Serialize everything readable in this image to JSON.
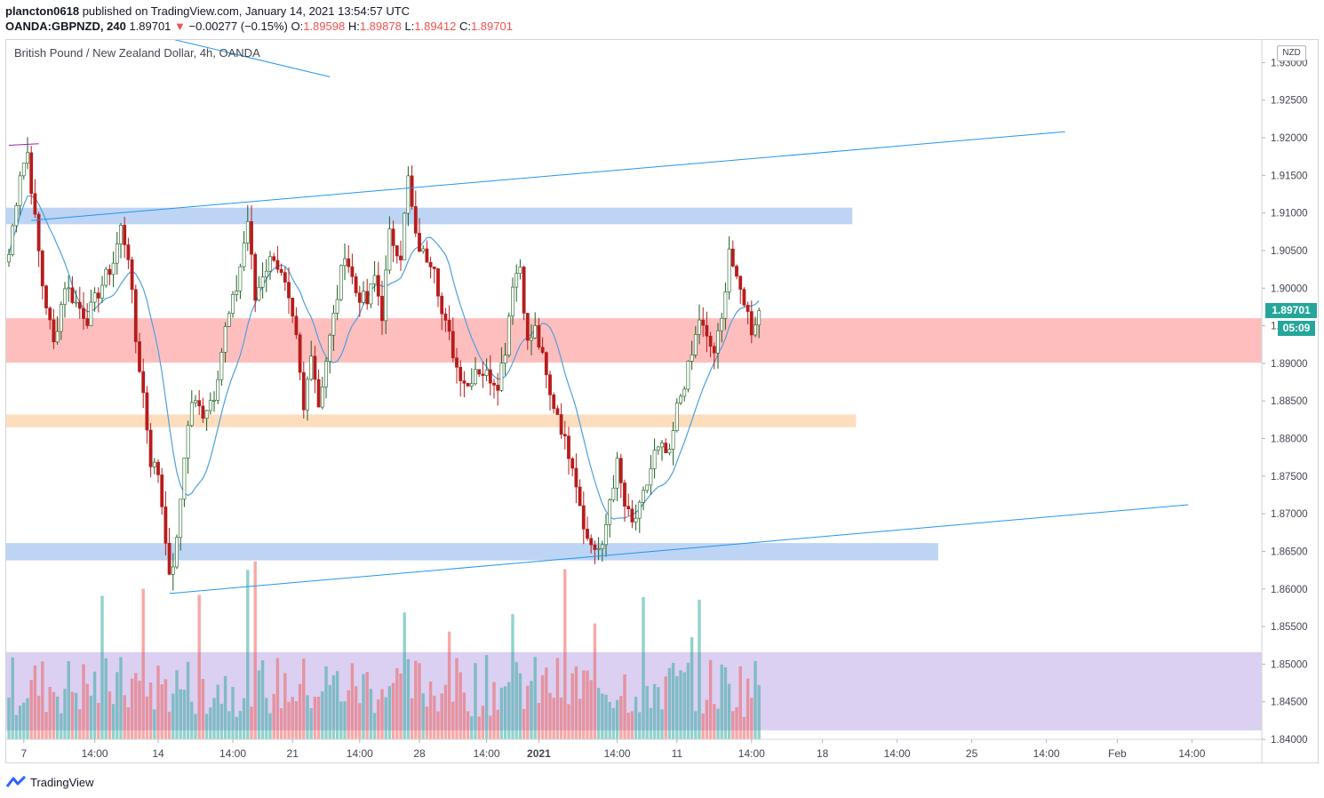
{
  "header": {
    "user": "plancton0618",
    "published_text": " published on TradingView.com, January 14, 2021 13:54:57 UTC",
    "symbol": "OANDA:GBPNZD, 240",
    "last_price": "1.89701",
    "change_arrow": "▼",
    "change": "−0.00277 (−0.15%)",
    "o_label": "O:",
    "o_value": "1.89598",
    "h_label": "H:",
    "h_value": "1.89878",
    "l_label": "L:",
    "l_value": "1.89412",
    "c_label": "C:",
    "c_value": "1.89701"
  },
  "legend": {
    "title": "British Pound / New Zealand Dollar, 4h, OANDA"
  },
  "price_scale": {
    "currency": "NZD",
    "current_price": "1.89701",
    "countdown": "05:09"
  },
  "footer": {
    "brand": "TradingView"
  },
  "colors": {
    "up": "#26a69a",
    "down": "#ef5350",
    "candle_up": "#ffffff",
    "candle_down": "#b71c1c",
    "ma": "#4ea0dc",
    "trendline": "#2196f3",
    "support_zone": "#b2cdf2",
    "resistance_zone": "#ffb3b3",
    "mid_zone": "#fcd8b4",
    "volume_zone": "#d5c8ee"
  },
  "chart_data": {
    "type": "candlestick",
    "title": "British Pound / New Zealand Dollar, 4h, OANDA",
    "ylim": [
      1.84,
      1.933
    ],
    "y_ticks": [
      "1.93000",
      "1.92500",
      "1.92000",
      "1.91500",
      "1.91000",
      "1.90500",
      "1.90000",
      "1.89500",
      "1.89000",
      "1.88500",
      "1.88000",
      "1.87500",
      "1.87000",
      "1.86500",
      "1.86000",
      "1.85500",
      "1.85000",
      "1.84500",
      "1.84000"
    ],
    "x_ticks": [
      {
        "label": "7",
        "idx": 4
      },
      {
        "label": "14:00",
        "idx": 23
      },
      {
        "label": "14",
        "idx": 40
      },
      {
        "label": "14:00",
        "idx": 60
      },
      {
        "label": "21",
        "idx": 76
      },
      {
        "label": "14:00",
        "idx": 94
      },
      {
        "label": "28",
        "idx": 110
      },
      {
        "label": "14:00",
        "idx": 128
      },
      {
        "label": "2021",
        "idx": 142
      },
      {
        "label": "14:00",
        "idx": 163
      },
      {
        "label": "11",
        "idx": 179
      },
      {
        "label": "14:00",
        "idx": 199
      },
      {
        "label": "18",
        "idx": 218
      },
      {
        "label": "14:00",
        "idx": 238
      },
      {
        "label": "25",
        "idx": 258
      },
      {
        "label": "14:00",
        "idx": 278
      },
      {
        "label": "Feb",
        "idx": 297
      },
      {
        "label": "14:00",
        "idx": 317
      }
    ],
    "anchors": [
      {
        "i": 0,
        "p": 1.9045
      },
      {
        "i": 3,
        "p": 1.9155
      },
      {
        "i": 5,
        "p": 1.918
      },
      {
        "i": 7,
        "p": 1.909
      },
      {
        "i": 9,
        "p": 1.9005
      },
      {
        "i": 12,
        "p": 1.8925
      },
      {
        "i": 15,
        "p": 1.9005
      },
      {
        "i": 18,
        "p": 1.898
      },
      {
        "i": 21,
        "p": 1.896
      },
      {
        "i": 24,
        "p": 1.8995
      },
      {
        "i": 28,
        "p": 1.9035
      },
      {
        "i": 30,
        "p": 1.908
      },
      {
        "i": 32,
        "p": 1.9045
      },
      {
        "i": 34,
        "p": 1.893
      },
      {
        "i": 36,
        "p": 1.886
      },
      {
        "i": 38,
        "p": 1.877
      },
      {
        "i": 40,
        "p": 1.8755
      },
      {
        "i": 42,
        "p": 1.867
      },
      {
        "i": 43,
        "p": 1.861
      },
      {
        "i": 45,
        "p": 1.866
      },
      {
        "i": 47,
        "p": 1.878
      },
      {
        "i": 49,
        "p": 1.885
      },
      {
        "i": 52,
        "p": 1.8835
      },
      {
        "i": 55,
        "p": 1.886
      },
      {
        "i": 58,
        "p": 1.8945
      },
      {
        "i": 61,
        "p": 1.9
      },
      {
        "i": 64,
        "p": 1.909
      },
      {
        "i": 66,
        "p": 1.8985
      },
      {
        "i": 68,
        "p": 1.902
      },
      {
        "i": 71,
        "p": 1.9045
      },
      {
        "i": 74,
        "p": 1.9
      },
      {
        "i": 77,
        "p": 1.893
      },
      {
        "i": 79,
        "p": 1.8835
      },
      {
        "i": 81,
        "p": 1.892
      },
      {
        "i": 83,
        "p": 1.8845
      },
      {
        "i": 85,
        "p": 1.8905
      },
      {
        "i": 88,
        "p": 1.899
      },
      {
        "i": 90,
        "p": 1.905
      },
      {
        "i": 93,
        "p": 1.8995
      },
      {
        "i": 96,
        "p": 1.898
      },
      {
        "i": 98,
        "p": 1.9015
      },
      {
        "i": 100,
        "p": 1.8965
      },
      {
        "i": 102,
        "p": 1.907
      },
      {
        "i": 105,
        "p": 1.9045
      },
      {
        "i": 107,
        "p": 1.9145
      },
      {
        "i": 109,
        "p": 1.9065
      },
      {
        "i": 111,
        "p": 1.9045
      },
      {
        "i": 114,
        "p": 1.9035
      },
      {
        "i": 116,
        "p": 1.8965
      },
      {
        "i": 118,
        "p": 1.8935
      },
      {
        "i": 120,
        "p": 1.8895
      },
      {
        "i": 123,
        "p": 1.887
      },
      {
        "i": 125,
        "p": 1.8895
      },
      {
        "i": 128,
        "p": 1.8885
      },
      {
        "i": 131,
        "p": 1.8875
      },
      {
        "i": 133,
        "p": 1.892
      },
      {
        "i": 135,
        "p": 1.901
      },
      {
        "i": 137,
        "p": 1.903
      },
      {
        "i": 139,
        "p": 1.8925
      },
      {
        "i": 141,
        "p": 1.8945
      },
      {
        "i": 143,
        "p": 1.8905
      },
      {
        "i": 145,
        "p": 1.8855
      },
      {
        "i": 147,
        "p": 1.8835
      },
      {
        "i": 149,
        "p": 1.8795
      },
      {
        "i": 151,
        "p": 1.877
      },
      {
        "i": 153,
        "p": 1.8715
      },
      {
        "i": 155,
        "p": 1.8665
      },
      {
        "i": 157,
        "p": 1.8655
      },
      {
        "i": 159,
        "p": 1.865
      },
      {
        "i": 161,
        "p": 1.872
      },
      {
        "i": 163,
        "p": 1.8765
      },
      {
        "i": 165,
        "p": 1.871
      },
      {
        "i": 167,
        "p": 1.8685
      },
      {
        "i": 169,
        "p": 1.8705
      },
      {
        "i": 171,
        "p": 1.874
      },
      {
        "i": 173,
        "p": 1.878
      },
      {
        "i": 175,
        "p": 1.8785
      },
      {
        "i": 177,
        "p": 1.8775
      },
      {
        "i": 179,
        "p": 1.884
      },
      {
        "i": 181,
        "p": 1.8875
      },
      {
        "i": 183,
        "p": 1.891
      },
      {
        "i": 185,
        "p": 1.896
      },
      {
        "i": 187,
        "p": 1.893
      },
      {
        "i": 189,
        "p": 1.8915
      },
      {
        "i": 191,
        "p": 1.8955
      },
      {
        "i": 193,
        "p": 1.9055
      },
      {
        "i": 195,
        "p": 1.9005
      },
      {
        "i": 197,
        "p": 1.8985
      },
      {
        "i": 199,
        "p": 1.8945
      },
      {
        "i": 201,
        "p": 1.897
      }
    ],
    "candle_count": 202,
    "ma_period": 12,
    "volume_seed": 7,
    "zones": [
      {
        "name": "upper-resistance-zone",
        "from": 1.9085,
        "to": 1.9107,
        "x_end_idx": 226,
        "color": "#b2cdf2"
      },
      {
        "name": "mid-resistance-zone",
        "from": 1.8901,
        "to": 1.896,
        "x_end_idx": 340,
        "color": "#ffb3b3"
      },
      {
        "name": "intermediate-support-zone",
        "from": 1.8815,
        "to": 1.8832,
        "x_end_idx": 227,
        "color": "#fcd8b4"
      },
      {
        "name": "lower-support-zone",
        "from": 1.8638,
        "to": 1.8661,
        "x_end_idx": 249,
        "color": "#b2cdf2"
      },
      {
        "name": "volume-zone",
        "from": 1.8412,
        "to": 1.8516,
        "x_end_idx": 340,
        "color": "#d5c8ee"
      }
    ],
    "trendlines": [
      {
        "name": "upper-channel-line",
        "x1": 6,
        "p1": 1.909,
        "x2": 283,
        "p2": 1.9208
      },
      {
        "name": "lower-channel-line",
        "x1": 43,
        "p1": 1.8594,
        "x2": 316,
        "p2": 1.8712
      },
      {
        "name": "descending-line",
        "x1": 38,
        "p1": 1.9338,
        "x2": 86,
        "p2": 1.9281
      },
      {
        "name": "top-mark-line",
        "x1": 0,
        "p1": 1.919,
        "x2": 8,
        "p2": 1.9192
      }
    ]
  }
}
